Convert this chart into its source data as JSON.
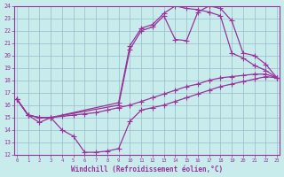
{
  "xlabel": "Windchill (Refroidissement éolien,°C)",
  "bg_color": "#c8ecec",
  "line_color": "#993399",
  "grid_color": "#99bbcc",
  "xmin": 0,
  "xmax": 23,
  "ymin": 12,
  "ymax": 24,
  "line1_x": [
    0,
    1,
    2,
    3,
    4,
    5,
    6,
    7,
    8,
    9,
    10,
    11,
    12,
    13,
    14,
    15,
    16,
    17,
    18,
    19,
    20,
    21,
    22,
    23
  ],
  "line1_y": [
    16.5,
    15.2,
    14.6,
    15.0,
    14.0,
    13.5,
    12.2,
    12.2,
    12.3,
    12.5,
    14.7,
    15.6,
    15.8,
    16.0,
    16.3,
    16.6,
    16.9,
    17.2,
    17.5,
    17.7,
    17.9,
    18.1,
    18.3,
    18.2
  ],
  "line2_x": [
    0,
    1,
    2,
    3,
    4,
    5,
    6,
    7,
    8,
    9,
    10,
    11,
    12,
    13,
    14,
    15,
    16,
    17,
    18,
    19,
    20,
    21,
    22,
    23
  ],
  "line2_y": [
    16.5,
    15.2,
    15.0,
    15.0,
    15.1,
    15.2,
    15.3,
    15.4,
    15.6,
    15.8,
    16.0,
    16.3,
    16.6,
    16.9,
    17.2,
    17.5,
    17.7,
    18.0,
    18.2,
    18.3,
    18.4,
    18.5,
    18.5,
    18.2
  ],
  "line3_x": [
    0,
    1,
    2,
    3,
    9,
    10,
    11,
    12,
    13,
    14,
    15,
    16,
    17,
    18,
    19,
    20,
    21,
    22,
    23
  ],
  "line3_y": [
    16.5,
    15.2,
    15.0,
    15.0,
    16.0,
    20.5,
    22.0,
    22.3,
    23.2,
    21.3,
    21.2,
    23.5,
    24.0,
    23.8,
    22.8,
    20.2,
    20.0,
    19.3,
    18.2
  ],
  "line4_x": [
    0,
    1,
    2,
    3,
    9,
    10,
    11,
    12,
    13,
    14,
    15,
    16,
    17,
    18,
    19,
    20,
    21,
    22,
    23
  ],
  "line4_y": [
    16.5,
    15.2,
    15.0,
    15.0,
    16.2,
    20.8,
    22.2,
    22.5,
    23.4,
    24.0,
    23.8,
    23.7,
    23.5,
    23.2,
    20.2,
    19.8,
    19.2,
    18.8,
    18.2
  ],
  "marker_size": 3.5
}
